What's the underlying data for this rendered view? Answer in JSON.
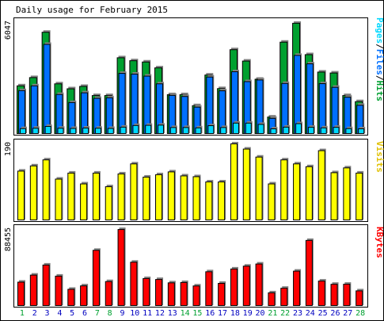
{
  "title": "Daily usage for February 2015",
  "colors": {
    "hits": "#00a030",
    "files": "#0070ff",
    "pages": "#00d8ff",
    "visits": "#ffff00",
    "kbytes": "#ff0000",
    "weekend_label": "#00a030",
    "weekday_label": "#0000c0"
  },
  "chart_data": [
    {
      "type": "bar",
      "title": "Daily usage for February 2015",
      "ylabel": "Pages/Files/Hits",
      "ymax_label": "6047",
      "ylim": [
        0,
        6047
      ],
      "categories": [
        "1",
        "2",
        "3",
        "4",
        "5",
        "6",
        "7",
        "8",
        "9",
        "10",
        "11",
        "12",
        "13",
        "14",
        "15",
        "16",
        "17",
        "18",
        "19",
        "20",
        "21",
        "22",
        "23",
        "24",
        "25",
        "26",
        "27",
        "28"
      ],
      "series": [
        {
          "name": "Hits",
          "values": [
            2600,
            3050,
            5520,
            2710,
            2440,
            2570,
            2070,
            2070,
            4130,
            3970,
            3900,
            3580,
            2120,
            2120,
            1520,
            3190,
            2450,
            4570,
            3950,
            2960,
            900,
            4980,
            6010,
            4300,
            3350,
            3300,
            2070,
            1740
          ]
        },
        {
          "name": "Files",
          "values": [
            2340,
            2600,
            4860,
            2130,
            1690,
            2220,
            1920,
            1950,
            3280,
            3240,
            3130,
            2710,
            2080,
            2020,
            1440,
            3080,
            2330,
            3370,
            2830,
            2920,
            830,
            2730,
            4260,
            3800,
            2720,
            2520,
            1980,
            1540
          ]
        },
        {
          "name": "Pages",
          "values": [
            270,
            290,
            390,
            290,
            280,
            300,
            290,
            280,
            350,
            440,
            450,
            460,
            330,
            330,
            310,
            430,
            330,
            570,
            570,
            500,
            200,
            350,
            540,
            340,
            310,
            340,
            270,
            250
          ]
        }
      ]
    },
    {
      "type": "bar",
      "ylabel": "Visits",
      "ymax_label": "190",
      "ylim": [
        0,
        190
      ],
      "categories": [
        "1",
        "2",
        "3",
        "4",
        "5",
        "6",
        "7",
        "8",
        "9",
        "10",
        "11",
        "12",
        "13",
        "14",
        "15",
        "16",
        "17",
        "18",
        "19",
        "20",
        "21",
        "22",
        "23",
        "24",
        "25",
        "26",
        "27",
        "28"
      ],
      "series": [
        {
          "name": "Visits",
          "values": [
            122,
            135,
            150,
            102,
            117,
            90,
            117,
            83,
            115,
            140,
            107,
            113,
            120,
            110,
            108,
            95,
            95,
            190,
            177,
            157,
            90,
            150,
            140,
            133,
            173,
            118,
            130,
            117
          ]
        }
      ]
    },
    {
      "type": "bar",
      "ylabel": "KBytes",
      "ymax_label": "88455",
      "ylim": [
        0,
        88455
      ],
      "categories": [
        "1",
        "2",
        "3",
        "4",
        "5",
        "6",
        "7",
        "8",
        "9",
        "10",
        "11",
        "12",
        "13",
        "14",
        "15",
        "16",
        "17",
        "18",
        "19",
        "20",
        "21",
        "22",
        "23",
        "24",
        "25",
        "26",
        "27",
        "28"
      ],
      "series": [
        {
          "name": "KBytes",
          "values": [
            27200,
            35400,
            47100,
            34200,
            18900,
            22900,
            64200,
            27900,
            88400,
            50400,
            31400,
            30300,
            26400,
            26800,
            22800,
            39300,
            25800,
            42500,
            45800,
            48300,
            14800,
            20100,
            40000,
            75700,
            28500,
            24700,
            24800,
            17100
          ]
        }
      ]
    }
  ],
  "weekend_days": [
    "1",
    "7",
    "8",
    "14",
    "15",
    "21",
    "22",
    "28"
  ]
}
